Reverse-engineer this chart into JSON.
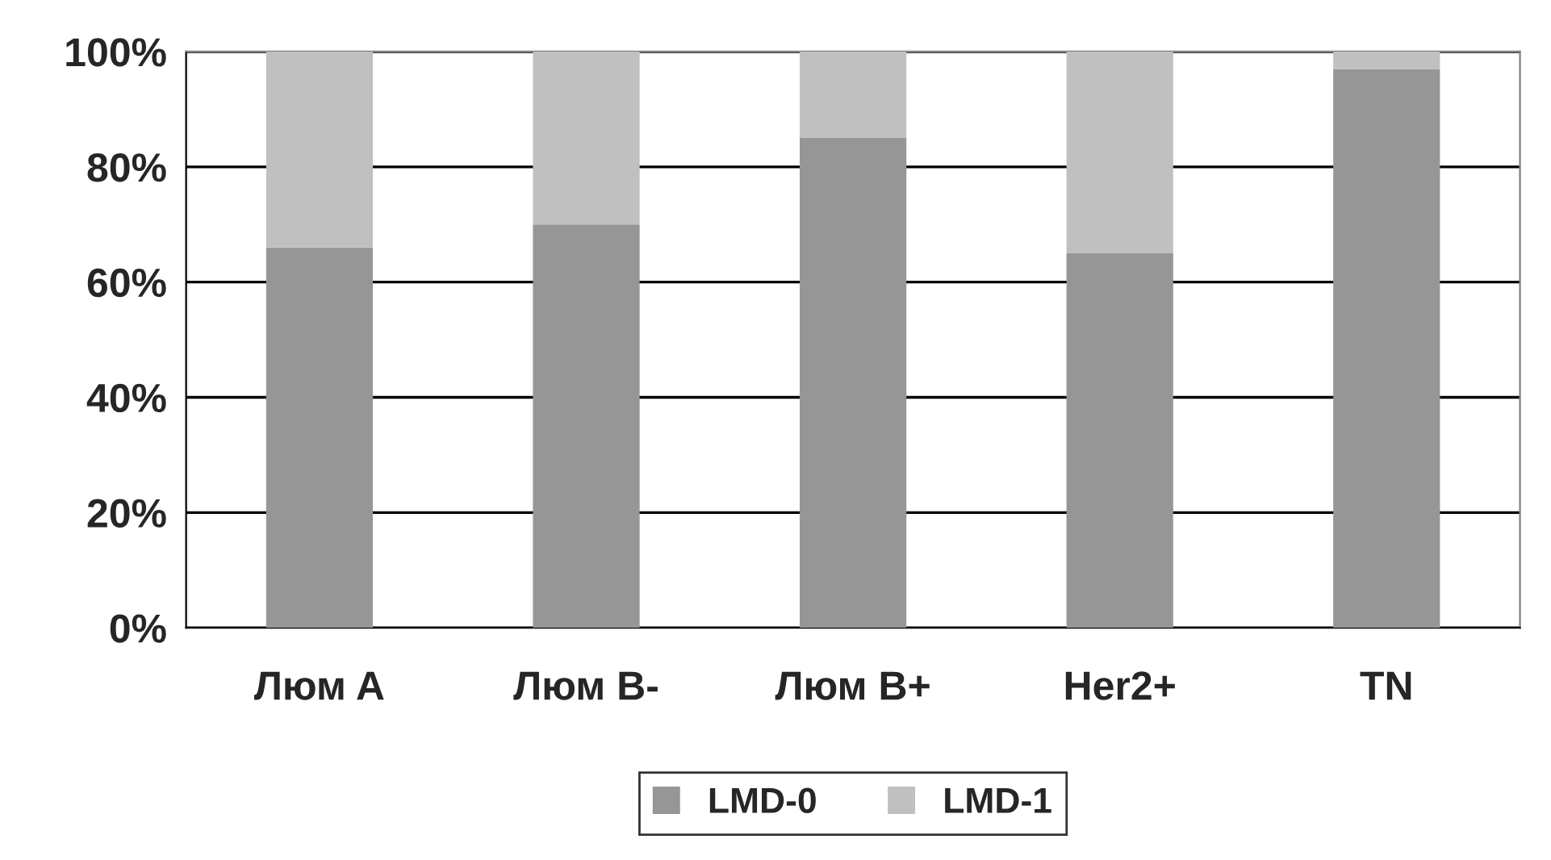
{
  "chart_data": {
    "type": "bar",
    "stacked": true,
    "categories": [
      "Люм A",
      "Люм B-",
      "Люм B+",
      "Her2+",
      "TN"
    ],
    "series": [
      {
        "name": "LMD-0",
        "color": "#969696",
        "values": [
          66,
          70,
          85,
          65,
          97
        ]
      },
      {
        "name": "LMD-1",
        "color": "#c0c0c0",
        "values": [
          34,
          30,
          15,
          35,
          3
        ]
      }
    ],
    "ylim": [
      0,
      100
    ],
    "yticks": [
      {
        "value": 0,
        "label": "0%"
      },
      {
        "value": 20,
        "label": "20%"
      },
      {
        "value": 40,
        "label": "40%"
      },
      {
        "value": 60,
        "label": "60%"
      },
      {
        "value": 80,
        "label": "80%"
      },
      {
        "value": 100,
        "label": "100%"
      }
    ],
    "grid": "y",
    "legend": "bottom"
  }
}
